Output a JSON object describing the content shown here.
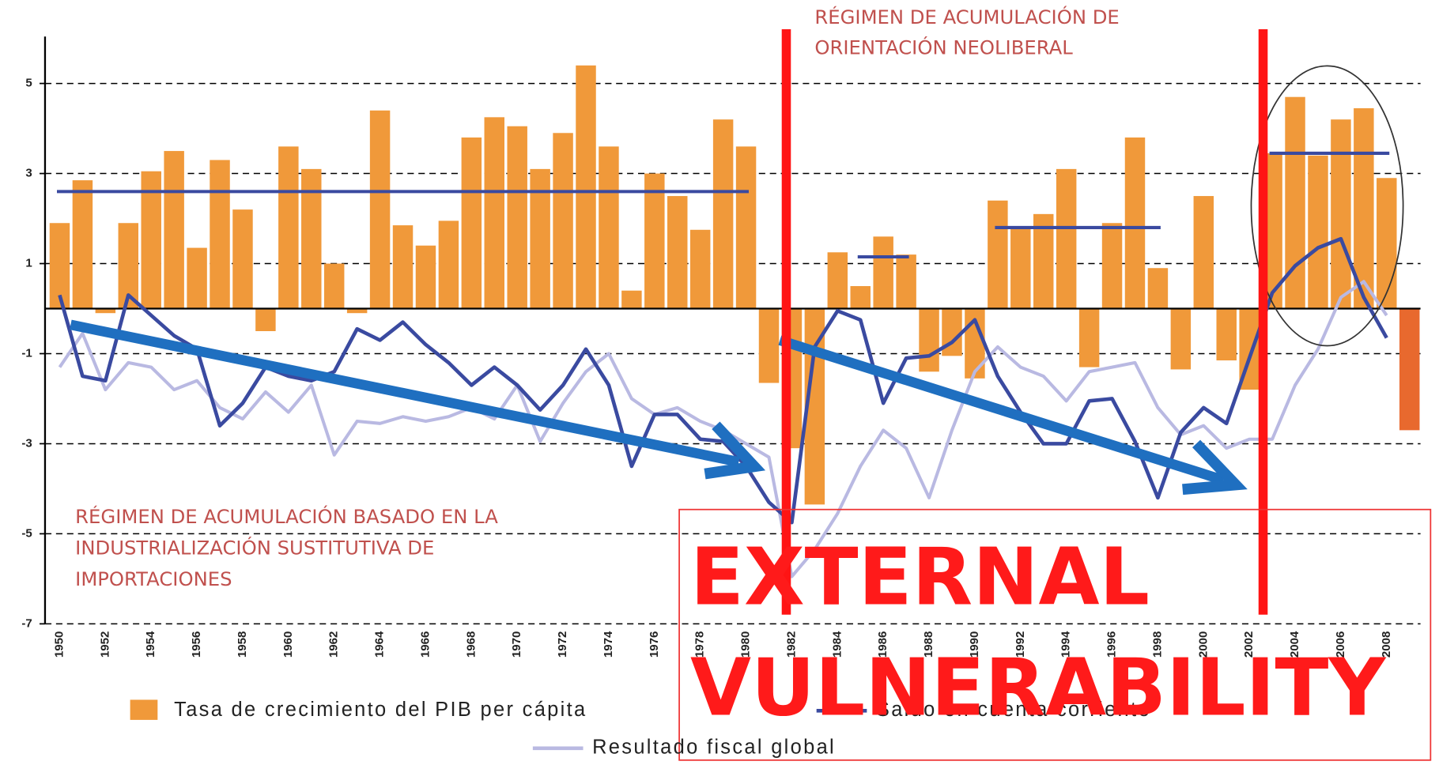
{
  "chart_data": {
    "type": "bar",
    "annotations": {
      "neoliberal": [
        "RÉGIMEN DE ACUMULACIÓN DE",
        "ORIENTACIÓN NEOLIBERAL"
      ],
      "isi": [
        "RÉGIMEN DE ACUMULACIÓN BASADO EN LA",
        "INDUSTRIALIZACIÓN SUSTITUTIVA DE",
        "IMPORTACIONES"
      ],
      "headline": [
        "EXTERNAL",
        "VULNERABILITY"
      ]
    },
    "categories": [
      "1950",
      null,
      "1952",
      null,
      "1954",
      null,
      "1956",
      null,
      "1958",
      null,
      "1960",
      null,
      "1962",
      null,
      "1964",
      null,
      "1966",
      null,
      "1968",
      null,
      "1970",
      null,
      "1972",
      null,
      "1974",
      null,
      "1976",
      null,
      "1978",
      null,
      "1980",
      null,
      "1982",
      null,
      "1984",
      null,
      "1986",
      null,
      "1988",
      null,
      "1990",
      null,
      "1992",
      null,
      "1994",
      null,
      "1996",
      null,
      "1998",
      null,
      "2000",
      null,
      "2002",
      null,
      "2004",
      null,
      "2006",
      null,
      "2008",
      null
    ],
    "ylim": [
      -7,
      6
    ],
    "yticks": [
      5,
      3,
      1,
      -1,
      -3,
      -5,
      -7
    ],
    "grid": true,
    "series": [
      {
        "name": "Tasa de crecimiento del PIB per cápita",
        "type": "bar",
        "color": "#f0993a",
        "colors": [
          "#f0993a",
          "#f0993a",
          "#f0993a",
          "#f0993a",
          "#f0993a",
          "#f0993a",
          "#f0993a",
          "#f0993a",
          "#f0993a",
          "#f0993a",
          "#f0993a",
          "#f0993a",
          "#f0993a",
          "#f0993a",
          "#f0993a",
          "#f0993a",
          "#f0993a",
          "#f0993a",
          "#f0993a",
          "#f0993a",
          "#f0993a",
          "#f0993a",
          "#f0993a",
          "#f0993a",
          "#f0993a",
          "#f0993a",
          "#f0993a",
          "#f0993a",
          "#f0993a",
          "#f0993a",
          "#f0993a",
          "#f0993a",
          "#f0993a",
          "#f0993a",
          "#f0993a",
          "#f0993a",
          "#f0993a",
          "#f0993a",
          "#f0993a",
          "#f0993a",
          "#f0993a",
          "#f0993a",
          "#f0993a",
          "#f0993a",
          "#f0993a",
          "#f0993a",
          "#f0993a",
          "#f0993a",
          "#f0993a",
          "#f0993a",
          "#f0993a",
          "#f0993a",
          "#f0993a",
          "#f0993a",
          "#f0993a",
          "#f0993a",
          "#f0993a",
          "#f0993a",
          "#f0993a",
          "#e8692e"
        ],
        "values": [
          1.9,
          2.85,
          -0.1,
          1.9,
          3.05,
          3.5,
          1.35,
          3.3,
          2.2,
          -0.5,
          3.6,
          3.1,
          1.0,
          -0.1,
          4.4,
          1.85,
          1.4,
          1.95,
          3.8,
          4.25,
          4.05,
          3.1,
          3.9,
          5.4,
          3.6,
          0.4,
          3.0,
          2.5,
          1.75,
          4.2,
          3.6,
          -1.65,
          -3.1,
          -4.35,
          1.25,
          0.5,
          1.6,
          1.2,
          -1.4,
          -1.05,
          -1.55,
          2.4,
          1.8,
          2.1,
          3.1,
          -1.3,
          1.9,
          3.8,
          0.9,
          -1.35,
          2.5,
          -1.15,
          -1.8,
          3.45,
          4.7,
          3.4,
          4.2,
          4.45,
          2.9,
          -2.7
        ]
      },
      {
        "name": "Saldo en cuenta corriente",
        "type": "line",
        "color": "#3a4aa0",
        "values": [
          0.3,
          -1.5,
          -1.6,
          0.3,
          -0.15,
          -0.6,
          -0.9,
          -2.6,
          -2.1,
          -1.3,
          -1.5,
          -1.6,
          -1.4,
          -0.45,
          -0.7,
          -0.3,
          -0.8,
          -1.2,
          -1.7,
          -1.3,
          -1.7,
          -2.25,
          -1.7,
          -0.9,
          -1.7,
          -3.5,
          -2.35,
          -2.35,
          -2.9,
          -2.95,
          -3.5,
          -4.3,
          -4.75,
          -0.85,
          -0.05,
          -0.25,
          -2.1,
          -1.1,
          -1.05,
          -0.75,
          -0.25,
          -1.5,
          -2.3,
          -3.0,
          -3.0,
          -2.05,
          -2.0,
          -2.95,
          -4.2,
          -2.75,
          -2.2,
          -2.55,
          -1.1,
          0.35,
          0.95,
          1.35,
          1.55,
          0.25,
          -0.65,
          null
        ]
      },
      {
        "name": "Resultado fiscal global",
        "type": "line",
        "color": "#b9b9e2",
        "values": [
          -1.3,
          -0.55,
          -1.8,
          -1.2,
          -1.3,
          -1.8,
          -1.6,
          -2.2,
          -2.45,
          -1.85,
          -2.3,
          -1.7,
          -3.25,
          -2.5,
          -2.55,
          -2.4,
          -2.5,
          -2.4,
          -2.2,
          -2.45,
          -1.7,
          -2.95,
          -2.1,
          -1.4,
          -1.0,
          -2.0,
          -2.35,
          -2.2,
          -2.5,
          -2.7,
          -3.0,
          -3.3,
          -5.95,
          -5.35,
          -4.55,
          -3.5,
          -2.7,
          -3.1,
          -4.2,
          -2.7,
          -1.4,
          -0.85,
          -1.3,
          -1.5,
          -2.05,
          -1.4,
          -1.3,
          -1.2,
          -2.2,
          -2.8,
          -2.6,
          -3.1,
          -2.9,
          -2.9,
          -1.7,
          -0.9,
          0.25,
          0.6,
          -0.15,
          null
        ]
      }
    ],
    "period_means": {
      "color": "#3a4aa0",
      "periods": [
        {
          "start": 1950,
          "end": 1980,
          "value": 2.6
        },
        {
          "start": 1985,
          "end": 1987,
          "value": 1.15
        },
        {
          "start": 1991,
          "end": 1998,
          "value": 1.8
        },
        {
          "start": 2003,
          "end": 2008,
          "value": 3.45
        }
      ]
    }
  }
}
